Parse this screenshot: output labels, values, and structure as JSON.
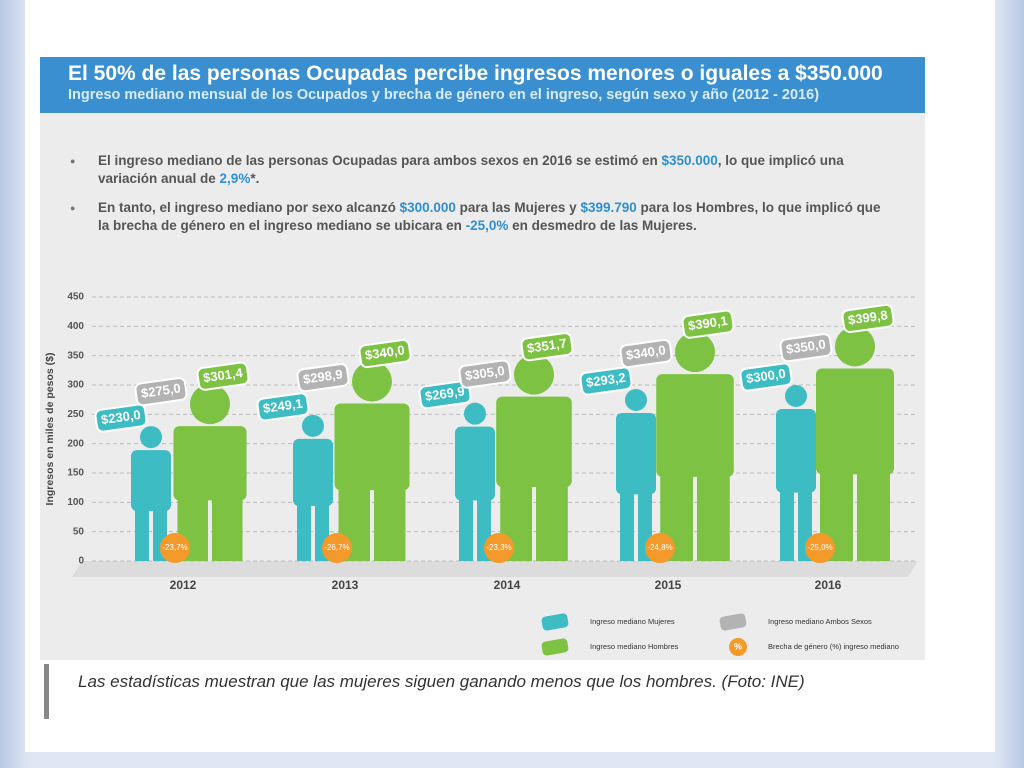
{
  "chart_data": {
    "type": "pictogram",
    "title": "El 50% de las personas Ocupadas percibe ingresos menores o iguales a $350.000",
    "subtitle": "Ingreso mediano mensual de los Ocupados y brecha de género en el ingreso, según sexo y año (2012 - 2016)",
    "bullets": [
      [
        "El ingreso mediano de las personas Ocupadas para ambos sexos en 2016 se estimó en ",
        "$350.000",
        ", lo que implicó una variación anual de ",
        "2,9%",
        "*."
      ],
      [
        "En tanto, el ingreso mediano por sexo alcanzó ",
        "$300.000",
        " para las Mujeres y ",
        "$399.790",
        " para los Hombres, lo que implicó que la brecha de género en el ingreso mediano se ubicara en ",
        "-25,0%",
        " en desmedro de las Mujeres."
      ]
    ],
    "ylabel": "Ingresos en miles de pesos ($)",
    "ylim": [
      0,
      450
    ],
    "yticks": [
      0,
      50,
      100,
      150,
      200,
      250,
      300,
      350,
      400,
      450
    ],
    "grid": true,
    "categories": [
      "2012",
      "2013",
      "2014",
      "2015",
      "2016"
    ],
    "series": [
      {
        "name": "Ingreso mediano Mujeres",
        "color": "#3dbcc3",
        "values": [
          230.0,
          249.1,
          269.9,
          293.2,
          300.0
        ],
        "value_labels": [
          "$230,0",
          "$249,1",
          "$269,9",
          "$293,2",
          "$300,0"
        ]
      },
      {
        "name": "Ingreso mediano Ambos Sexos",
        "color": "#b3b3b3",
        "values": [
          275.0,
          298.9,
          305.0,
          340.0,
          350.0
        ],
        "value_labels": [
          "$275,0",
          "$298,9",
          "$305,0",
          "$340,0",
          "$350,0"
        ]
      },
      {
        "name": "Ingreso mediano Hombres",
        "color": "#7dc243",
        "values": [
          301.4,
          340.0,
          351.7,
          390.1,
          399.8
        ],
        "value_labels": [
          "$301,4",
          "$340,0",
          "$351,7",
          "$390,1",
          "$399,8"
        ]
      }
    ],
    "gap": {
      "name": "Brecha de género (%) ingreso mediano",
      "color": "#f39a2b",
      "symbol": "%",
      "values": [
        -23.7,
        -26.7,
        -23.3,
        -24.8,
        -25.0
      ],
      "value_labels": [
        "-23,7%",
        "-26,7%",
        "-23,3%",
        "-24,8%",
        "-25,0%"
      ]
    },
    "caption": "Las estadísticas muestran que las mujeres siguen ganando menos que los hombres. (Foto: INE)"
  }
}
